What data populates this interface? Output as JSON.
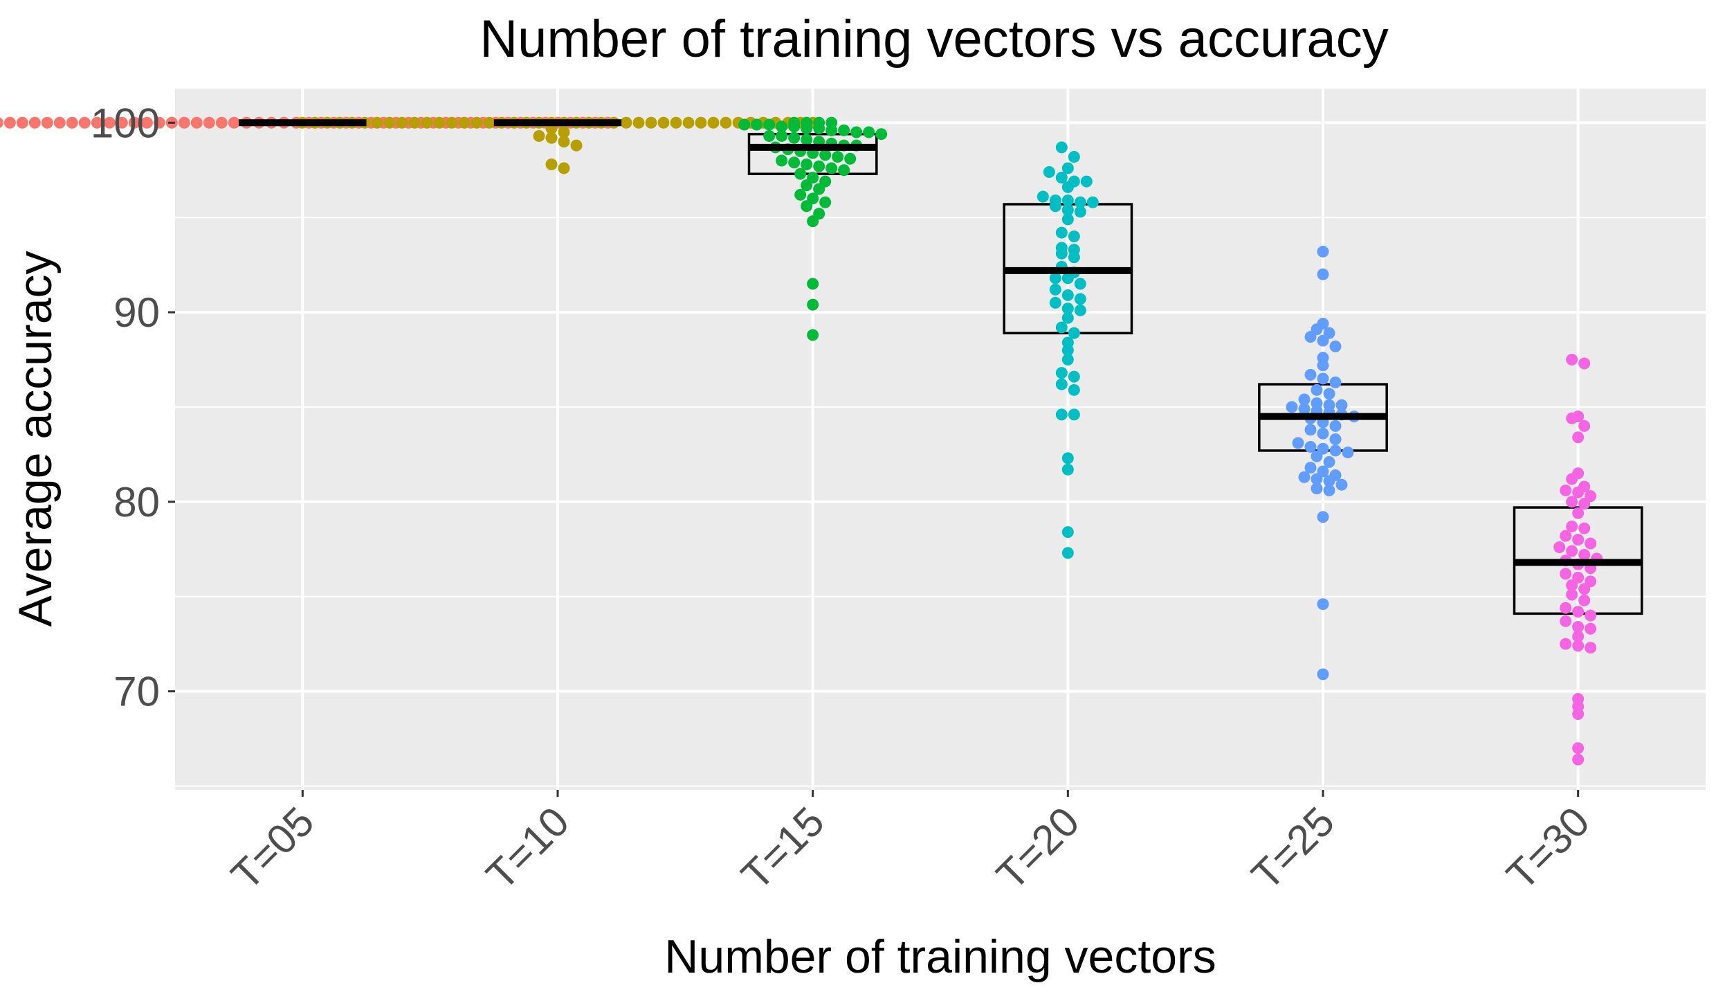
{
  "chart_data": {
    "type": "scatter",
    "subtype": "boxplot-with-beeswarm",
    "title": "Number of training vectors vs accuracy",
    "xlabel": "Number of training vectors",
    "ylabel": "Average accuracy",
    "ylim": [
      64.8,
      101.8
    ],
    "y_ticks": [
      70,
      80,
      90,
      100
    ],
    "grid": true,
    "legend": "none",
    "categories": [
      "T=05",
      "T=10",
      "T=15",
      "T=20",
      "T=25",
      "T=30"
    ],
    "series": [
      {
        "category": "T=05",
        "color": "#F8766D",
        "box": {
          "q1": 100,
          "median": 100,
          "q3": 100
        },
        "points": [
          100,
          100,
          100,
          100,
          100,
          100,
          100,
          100,
          100,
          100,
          100,
          100,
          100,
          100,
          100,
          100,
          100,
          100,
          100,
          100,
          100,
          100,
          100,
          100,
          100,
          100,
          100,
          100,
          100,
          100,
          100,
          100,
          100,
          100,
          100,
          100,
          100,
          100,
          100,
          100,
          100,
          100,
          100,
          100,
          100,
          100,
          100,
          100,
          100,
          100
        ]
      },
      {
        "category": "T=10",
        "color": "#B79F00",
        "box": {
          "q1": 100,
          "median": 100,
          "q3": 100
        },
        "points": [
          100,
          100,
          100,
          100,
          100,
          100,
          100,
          100,
          100,
          100,
          100,
          100,
          100,
          100,
          100,
          100,
          100,
          100,
          100,
          100,
          100,
          100,
          100,
          100,
          100,
          100,
          100,
          100,
          100,
          100,
          100,
          100,
          100,
          100,
          100,
          100,
          100,
          100,
          100,
          100,
          100,
          100,
          99.7,
          99.5,
          99.3,
          99.2,
          99.0,
          98.8,
          97.8,
          97.6
        ]
      },
      {
        "category": "T=15",
        "color": "#00BA38",
        "box": {
          "q1": 97.3,
          "median": 98.7,
          "q3": 99.4
        },
        "points": [
          100,
          100,
          100,
          100,
          99.9,
          99.9,
          99.9,
          99.8,
          99.8,
          99.7,
          99.7,
          99.6,
          99.6,
          99.5,
          99.5,
          99.4,
          99.3,
          99.3,
          99.2,
          99.1,
          99.0,
          98.9,
          98.8,
          98.8,
          98.7,
          98.6,
          98.5,
          98.4,
          98.3,
          98.2,
          98.1,
          98.0,
          97.9,
          97.8,
          97.7,
          97.6,
          97.5,
          97.3,
          97.1,
          96.9,
          96.7,
          96.5,
          96.2,
          96.0,
          95.8,
          95.6,
          95.2,
          94.8,
          91.5,
          90.4,
          88.8
        ]
      },
      {
        "category": "T=20",
        "color": "#00BFC4",
        "box": {
          "q1": 88.9,
          "median": 92.2,
          "q3": 95.7
        },
        "points": [
          98.7,
          98.2,
          97.6,
          97.4,
          97.1,
          96.9,
          96.9,
          96.6,
          96.1,
          95.9,
          95.9,
          95.8,
          95.8,
          95.6,
          95.4,
          95.3,
          94.9,
          94.2,
          94.0,
          93.4,
          93.3,
          93.1,
          92.9,
          92.4,
          92.1,
          91.8,
          91.8,
          91.5,
          91.2,
          90.9,
          90.7,
          90.5,
          90.2,
          90.1,
          89.7,
          89.2,
          88.9,
          88.4,
          88.0,
          87.5,
          86.8,
          86.6,
          86.2,
          85.9,
          84.6,
          84.6,
          82.3,
          81.7,
          78.4,
          77.3
        ]
      },
      {
        "category": "T=25",
        "color": "#619CFF",
        "box": {
          "q1": 82.7,
          "median": 84.5,
          "q3": 86.2
        },
        "points": [
          93.2,
          92.0,
          89.4,
          89.1,
          88.9,
          88.7,
          88.5,
          88.2,
          87.6,
          87.2,
          86.7,
          86.5,
          86.3,
          85.9,
          85.7,
          85.4,
          85.2,
          85.1,
          85.1,
          85.0,
          84.9,
          84.8,
          84.7,
          84.6,
          84.5,
          84.4,
          84.2,
          84.0,
          83.8,
          83.6,
          83.3,
          83.1,
          82.9,
          82.8,
          82.7,
          82.6,
          82.4,
          82.1,
          81.8,
          81.6,
          81.4,
          81.3,
          81.2,
          81.1,
          80.9,
          80.7,
          80.6,
          79.2,
          74.6,
          70.9
        ]
      },
      {
        "category": "T=30",
        "color": "#F564E3",
        "box": {
          "q1": 74.1,
          "median": 76.8,
          "q3": 79.7
        },
        "points": [
          87.5,
          87.3,
          84.5,
          84.4,
          84.0,
          83.4,
          81.5,
          81.2,
          80.8,
          80.6,
          80.5,
          80.3,
          80.0,
          79.9,
          79.4,
          78.7,
          78.6,
          78.2,
          78.0,
          77.8,
          77.6,
          77.4,
          77.2,
          77.0,
          76.9,
          76.7,
          76.5,
          76.2,
          76.0,
          75.8,
          75.6,
          75.4,
          75.1,
          74.8,
          74.4,
          74.2,
          74.0,
          73.7,
          73.4,
          73.3,
          72.9,
          72.5,
          72.4,
          72.3,
          69.6,
          69.2,
          68.8,
          67.0,
          66.4
        ]
      }
    ]
  }
}
